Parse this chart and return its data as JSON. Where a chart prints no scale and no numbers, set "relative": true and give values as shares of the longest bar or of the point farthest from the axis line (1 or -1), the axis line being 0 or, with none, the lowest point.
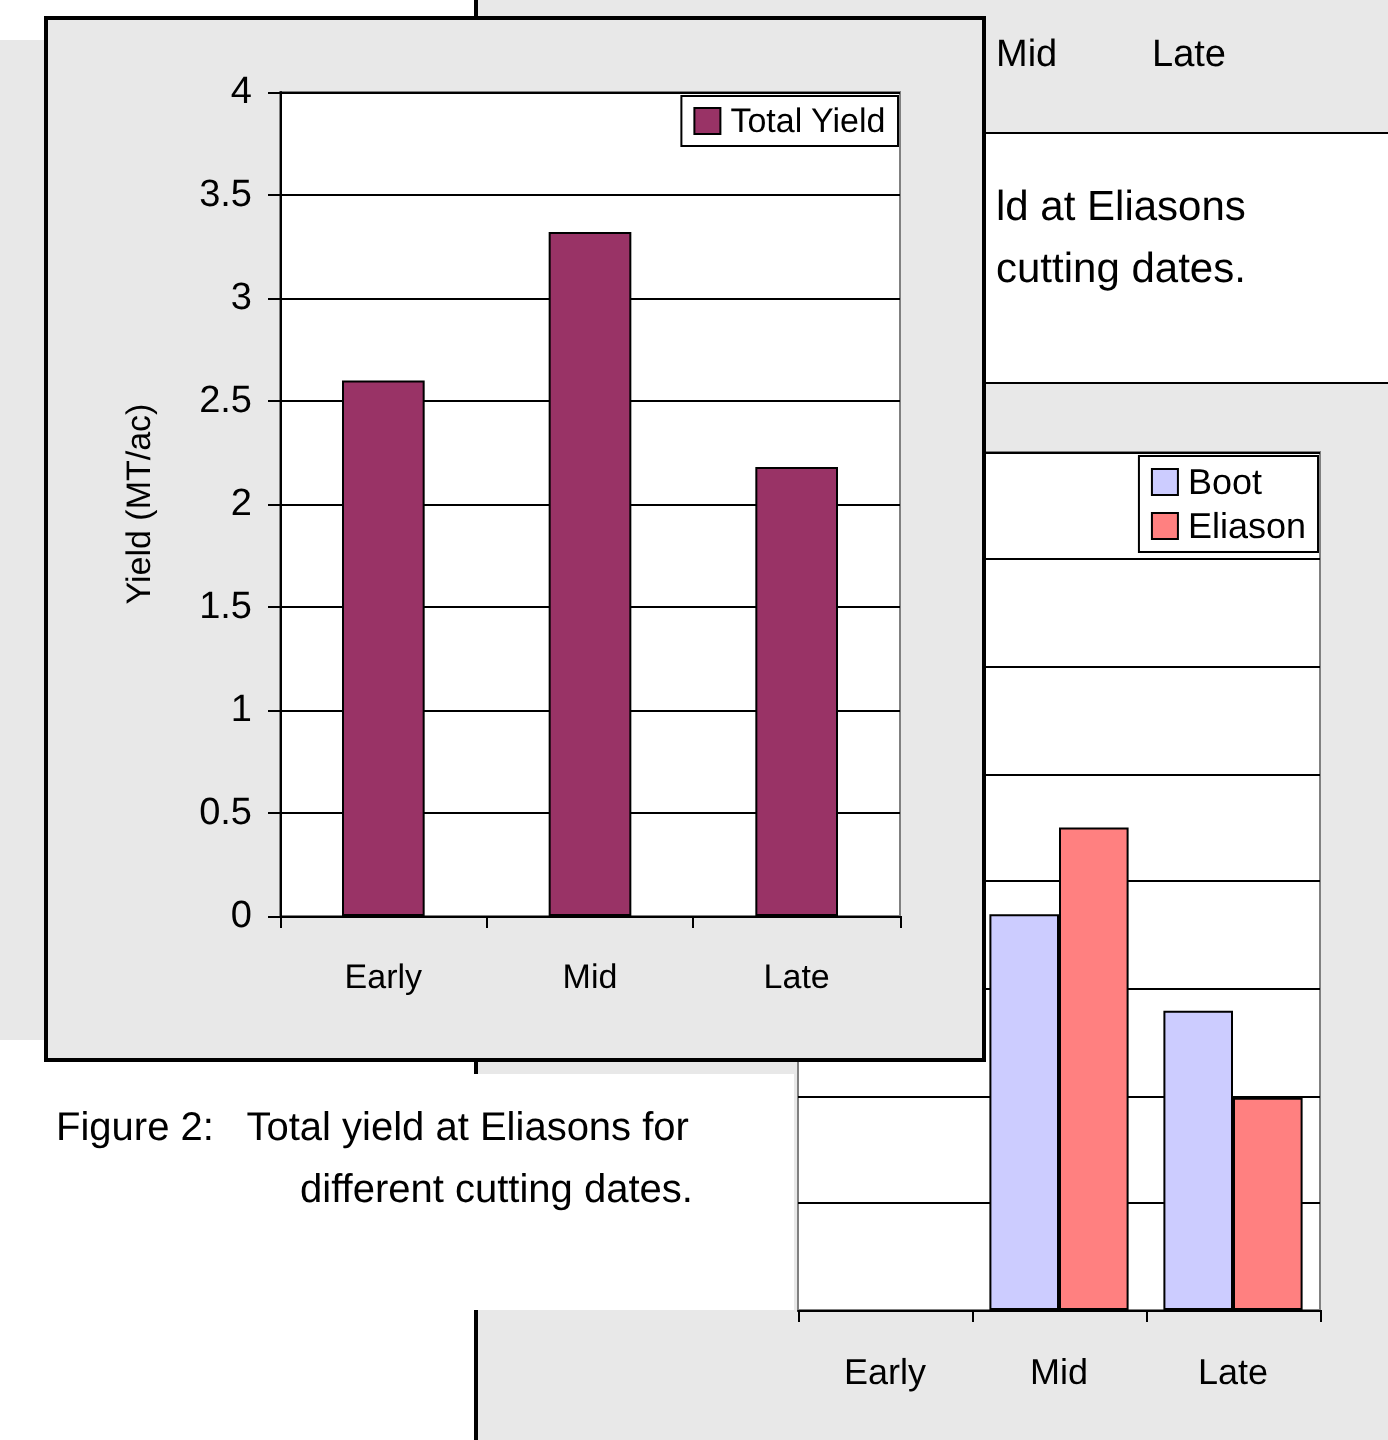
{
  "chart_data": [
    {
      "type": "bar",
      "categories": [
        "Early",
        "Mid",
        "Late"
      ],
      "ylabel": "Yield (MT/ac)",
      "series": [
        {
          "name": "Total Yield",
          "color": "#993366",
          "values": [
            2.6,
            3.32,
            2.18
          ]
        }
      ],
      "ylim": [
        0,
        4
      ],
      "yticks": [
        0,
        0.5,
        1,
        1.5,
        2,
        2.5,
        3,
        3.5,
        4
      ],
      "grid": "y",
      "legend": "top right",
      "annotations": [
        "Figure 2:   Total yield at Eliasons for different cutting dates."
      ]
    },
    {
      "type": "bar",
      "categories": [
        "Early",
        "Mid",
        "Late"
      ],
      "relative": true,
      "series": [
        {
          "name": "Boot",
          "color": "#ccccff",
          "values": [
            null,
            0.82,
            0.62
          ]
        },
        {
          "name": "Eliason",
          "color": "#ff8080",
          "values": [
            null,
            1,
            0.44
          ]
        }
      ],
      "grid": "y",
      "legend": "top right"
    },
    {
      "type": "other",
      "annotations": [
        "Mid",
        "Late",
        "ld at Eliasons",
        "cutting dates."
      ]
    }
  ]
}
